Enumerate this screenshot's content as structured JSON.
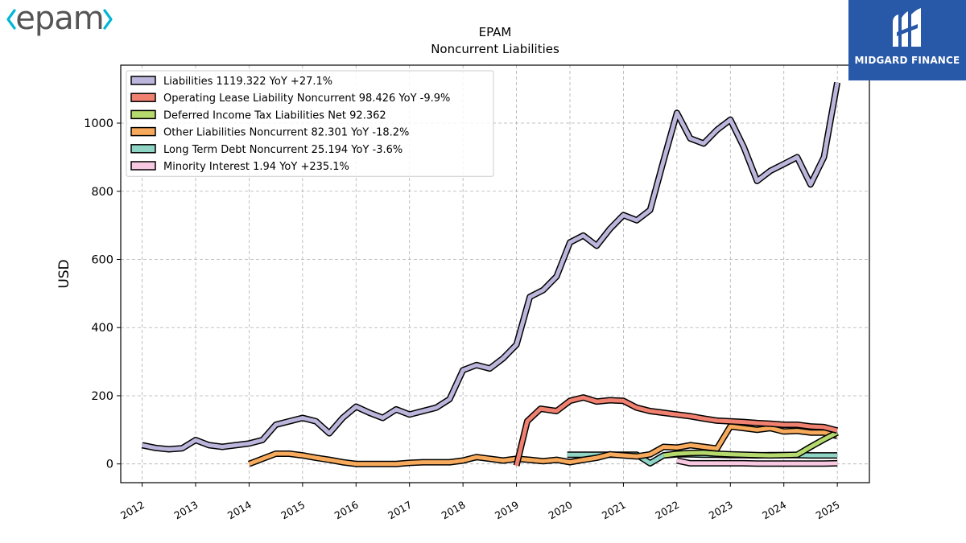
{
  "brand": {
    "left_logo_text": "epam",
    "right_logo_text": "MIDGARD FINANCE",
    "right_logo_color": "#2858a8",
    "left_logo_accent": "#00b7d5",
    "left_logo_text_color": "#555555"
  },
  "chart_data": {
    "type": "line",
    "title": "EPAM",
    "subtitle": "Noncurrent  Liabilities",
    "ylabel": "USD",
    "xlabel": "",
    "xlim": [
      2011.6,
      2025.6
    ],
    "ylim": [
      -55,
      1170
    ],
    "yticks": [
      0,
      200,
      400,
      600,
      800,
      1000
    ],
    "xticks": [
      2012,
      2013,
      2014,
      2015,
      2016,
      2017,
      2018,
      2019,
      2020,
      2021,
      2022,
      2023,
      2024,
      2025
    ],
    "xtick_labels": [
      "2012",
      "2013",
      "2014",
      "2015",
      "2016",
      "2017",
      "2018",
      "2019",
      "2020",
      "2021",
      "2022",
      "2023",
      "2024",
      "2025"
    ],
    "grid": true,
    "legend_position": "top-left",
    "series": [
      {
        "name": "Liabilities  1119.322 YoY +27.1%",
        "color": "#bcb6dc",
        "x": [
          2012.0,
          2012.25,
          2012.5,
          2012.75,
          2013.0,
          2013.25,
          2013.5,
          2013.75,
          2014.0,
          2014.25,
          2014.5,
          2014.75,
          2015.0,
          2015.25,
          2015.5,
          2015.75,
          2016.0,
          2016.25,
          2016.5,
          2016.75,
          2017.0,
          2017.25,
          2017.5,
          2017.75,
          2018.0,
          2018.25,
          2018.5,
          2018.75,
          2019.0,
          2019.25,
          2019.5,
          2019.75,
          2020.0,
          2020.25,
          2020.5,
          2020.75,
          2021.0,
          2021.25,
          2021.5,
          2021.75,
          2022.0,
          2022.25,
          2022.5,
          2022.75,
          2023.0,
          2023.25,
          2023.5,
          2023.75,
          2024.0,
          2024.25,
          2024.5,
          2024.75,
          2025.0
        ],
        "values": [
          55,
          47,
          43,
          46,
          70,
          55,
          50,
          55,
          60,
          70,
          115,
          125,
          135,
          125,
          90,
          135,
          168,
          150,
          135,
          160,
          145,
          155,
          165,
          190,
          275,
          290,
          280,
          310,
          350,
          490,
          510,
          550,
          650,
          670,
          640,
          690,
          730,
          715,
          745,
          890,
          1030,
          955,
          940,
          980,
          1010,
          930,
          830,
          860,
          880,
          900,
          820,
          900,
          1119
        ]
      },
      {
        "name": "Operating Lease Liability Noncurrent  98.426 YoY -9.9%",
        "color": "#f08070",
        "x": [
          2019.0,
          2019.2,
          2019.45,
          2019.75,
          2020.0,
          2020.25,
          2020.5,
          2020.75,
          2021.0,
          2021.25,
          2021.5,
          2021.75,
          2022.0,
          2022.25,
          2022.5,
          2022.75,
          2023.0,
          2023.25,
          2023.5,
          2023.75,
          2024.0,
          2024.25,
          2024.5,
          2024.75,
          2025.0
        ],
        "values": [
          -5,
          125,
          162,
          155,
          185,
          195,
          183,
          187,
          185,
          165,
          155,
          150,
          145,
          140,
          133,
          127,
          125,
          123,
          120,
          118,
          115,
          115,
          110,
          108,
          98
        ]
      },
      {
        "name": "Deferred Income Tax Liabilities Net  92.362",
        "color": "#b5d96d",
        "x": [
          2021.75,
          2022.0,
          2022.25,
          2022.5,
          2022.75,
          2023.0,
          2023.25,
          2023.5,
          2023.75,
          2024.0,
          2024.25,
          2024.5,
          2024.75,
          2025.0
        ],
        "values": [
          25,
          30,
          32,
          33,
          30,
          28,
          27,
          26,
          25,
          26,
          27,
          50,
          72,
          92
        ]
      },
      {
        "name": "Other Liabilities Noncurrent  82.301 YoY -18.2%",
        "color": "#f8aa5c",
        "x": [
          2014.0,
          2014.25,
          2014.5,
          2014.75,
          2015.0,
          2015.25,
          2015.5,
          2015.75,
          2016.0,
          2016.25,
          2016.5,
          2016.75,
          2017.0,
          2017.25,
          2017.5,
          2017.75,
          2018.0,
          2018.25,
          2018.5,
          2018.75,
          2019.0,
          2019.25,
          2019.5,
          2019.75,
          2020.0,
          2020.25,
          2020.5,
          2020.75,
          2021.0,
          2021.25,
          2021.5,
          2021.75,
          2022.0,
          2022.25,
          2022.5,
          2022.75,
          2023.0,
          2023.25,
          2023.5,
          2023.75,
          2024.0,
          2024.25,
          2024.5,
          2024.75,
          2025.0
        ],
        "values": [
          0,
          15,
          30,
          30,
          25,
          18,
          12,
          5,
          0,
          0,
          0,
          0,
          3,
          5,
          5,
          5,
          10,
          20,
          15,
          10,
          15,
          12,
          8,
          12,
          5,
          12,
          18,
          28,
          25,
          22,
          28,
          50,
          48,
          55,
          50,
          45,
          110,
          105,
          100,
          105,
          95,
          97,
          92,
          92,
          82
        ]
      },
      {
        "name": "Long Term Debt Noncurrent  25.194 YoY -3.6%",
        "color": "#8fd4c4",
        "x": [
          2019.95,
          2020.25,
          2020.5,
          2020.75,
          2021.0,
          2021.25,
          2021.5,
          2021.75,
          2022.0,
          2022.25,
          2022.5,
          2022.75,
          2023.0,
          2023.25,
          2023.5,
          2023.75,
          2024.0,
          2024.25,
          2024.5,
          2024.75,
          2025.0
        ],
        "values": [
          27,
          27,
          27,
          27,
          27,
          27,
          2,
          25,
          28,
          28,
          27,
          27,
          26,
          26,
          25,
          26,
          26,
          26,
          25,
          25,
          25
        ]
      },
      {
        "name": "Minority Interest  1.94 YoY +235.1%",
        "color": "#f8c8e0",
        "x": [
          2022.0,
          2022.25,
          2022.5,
          2022.75,
          2023.0,
          2023.25,
          2023.5,
          2023.75,
          2024.0,
          2024.25,
          2024.5,
          2024.75,
          2025.0
        ],
        "values": [
          10,
          2,
          2,
          2,
          2,
          2,
          1,
          1,
          1,
          1,
          1,
          1,
          2
        ]
      }
    ]
  }
}
